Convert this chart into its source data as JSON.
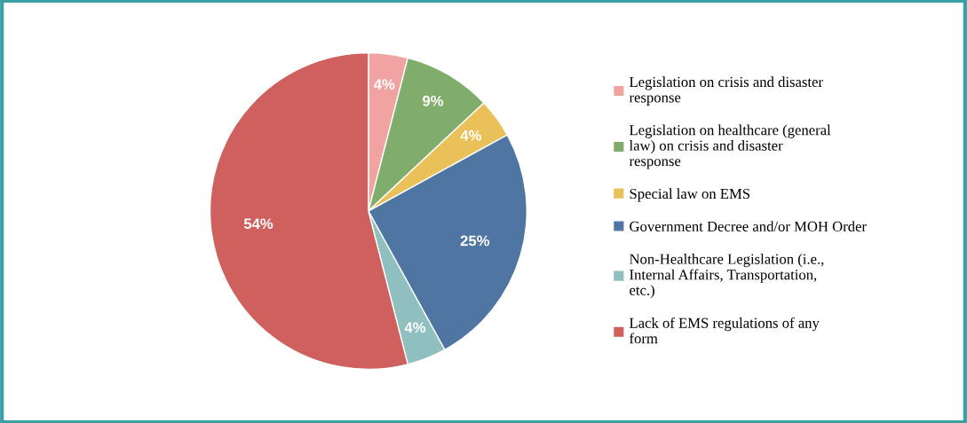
{
  "chart_data": {
    "type": "pie",
    "categories": [
      "Legislation on crisis and disaster response",
      "Legislation on healthcare (general law) on crisis and disaster response",
      "Special law on EMS",
      "Government Decree and/or MOH Order",
      "Non-Healthcare Legislation (i.e., Internal Affairs, Transportation, etc.)",
      "Lack of EMS regulations of any form"
    ],
    "values": [
      4,
      9,
      4,
      25,
      4,
      54
    ],
    "value_labels": [
      "4%",
      "9%",
      "4%",
      "25%",
      "4%",
      "54%"
    ],
    "colors": [
      "#f0a3a1",
      "#80ad6b",
      "#e9c158",
      "#4f76a3",
      "#8fbfbf",
      "#d0605e"
    ],
    "legend": "right"
  }
}
